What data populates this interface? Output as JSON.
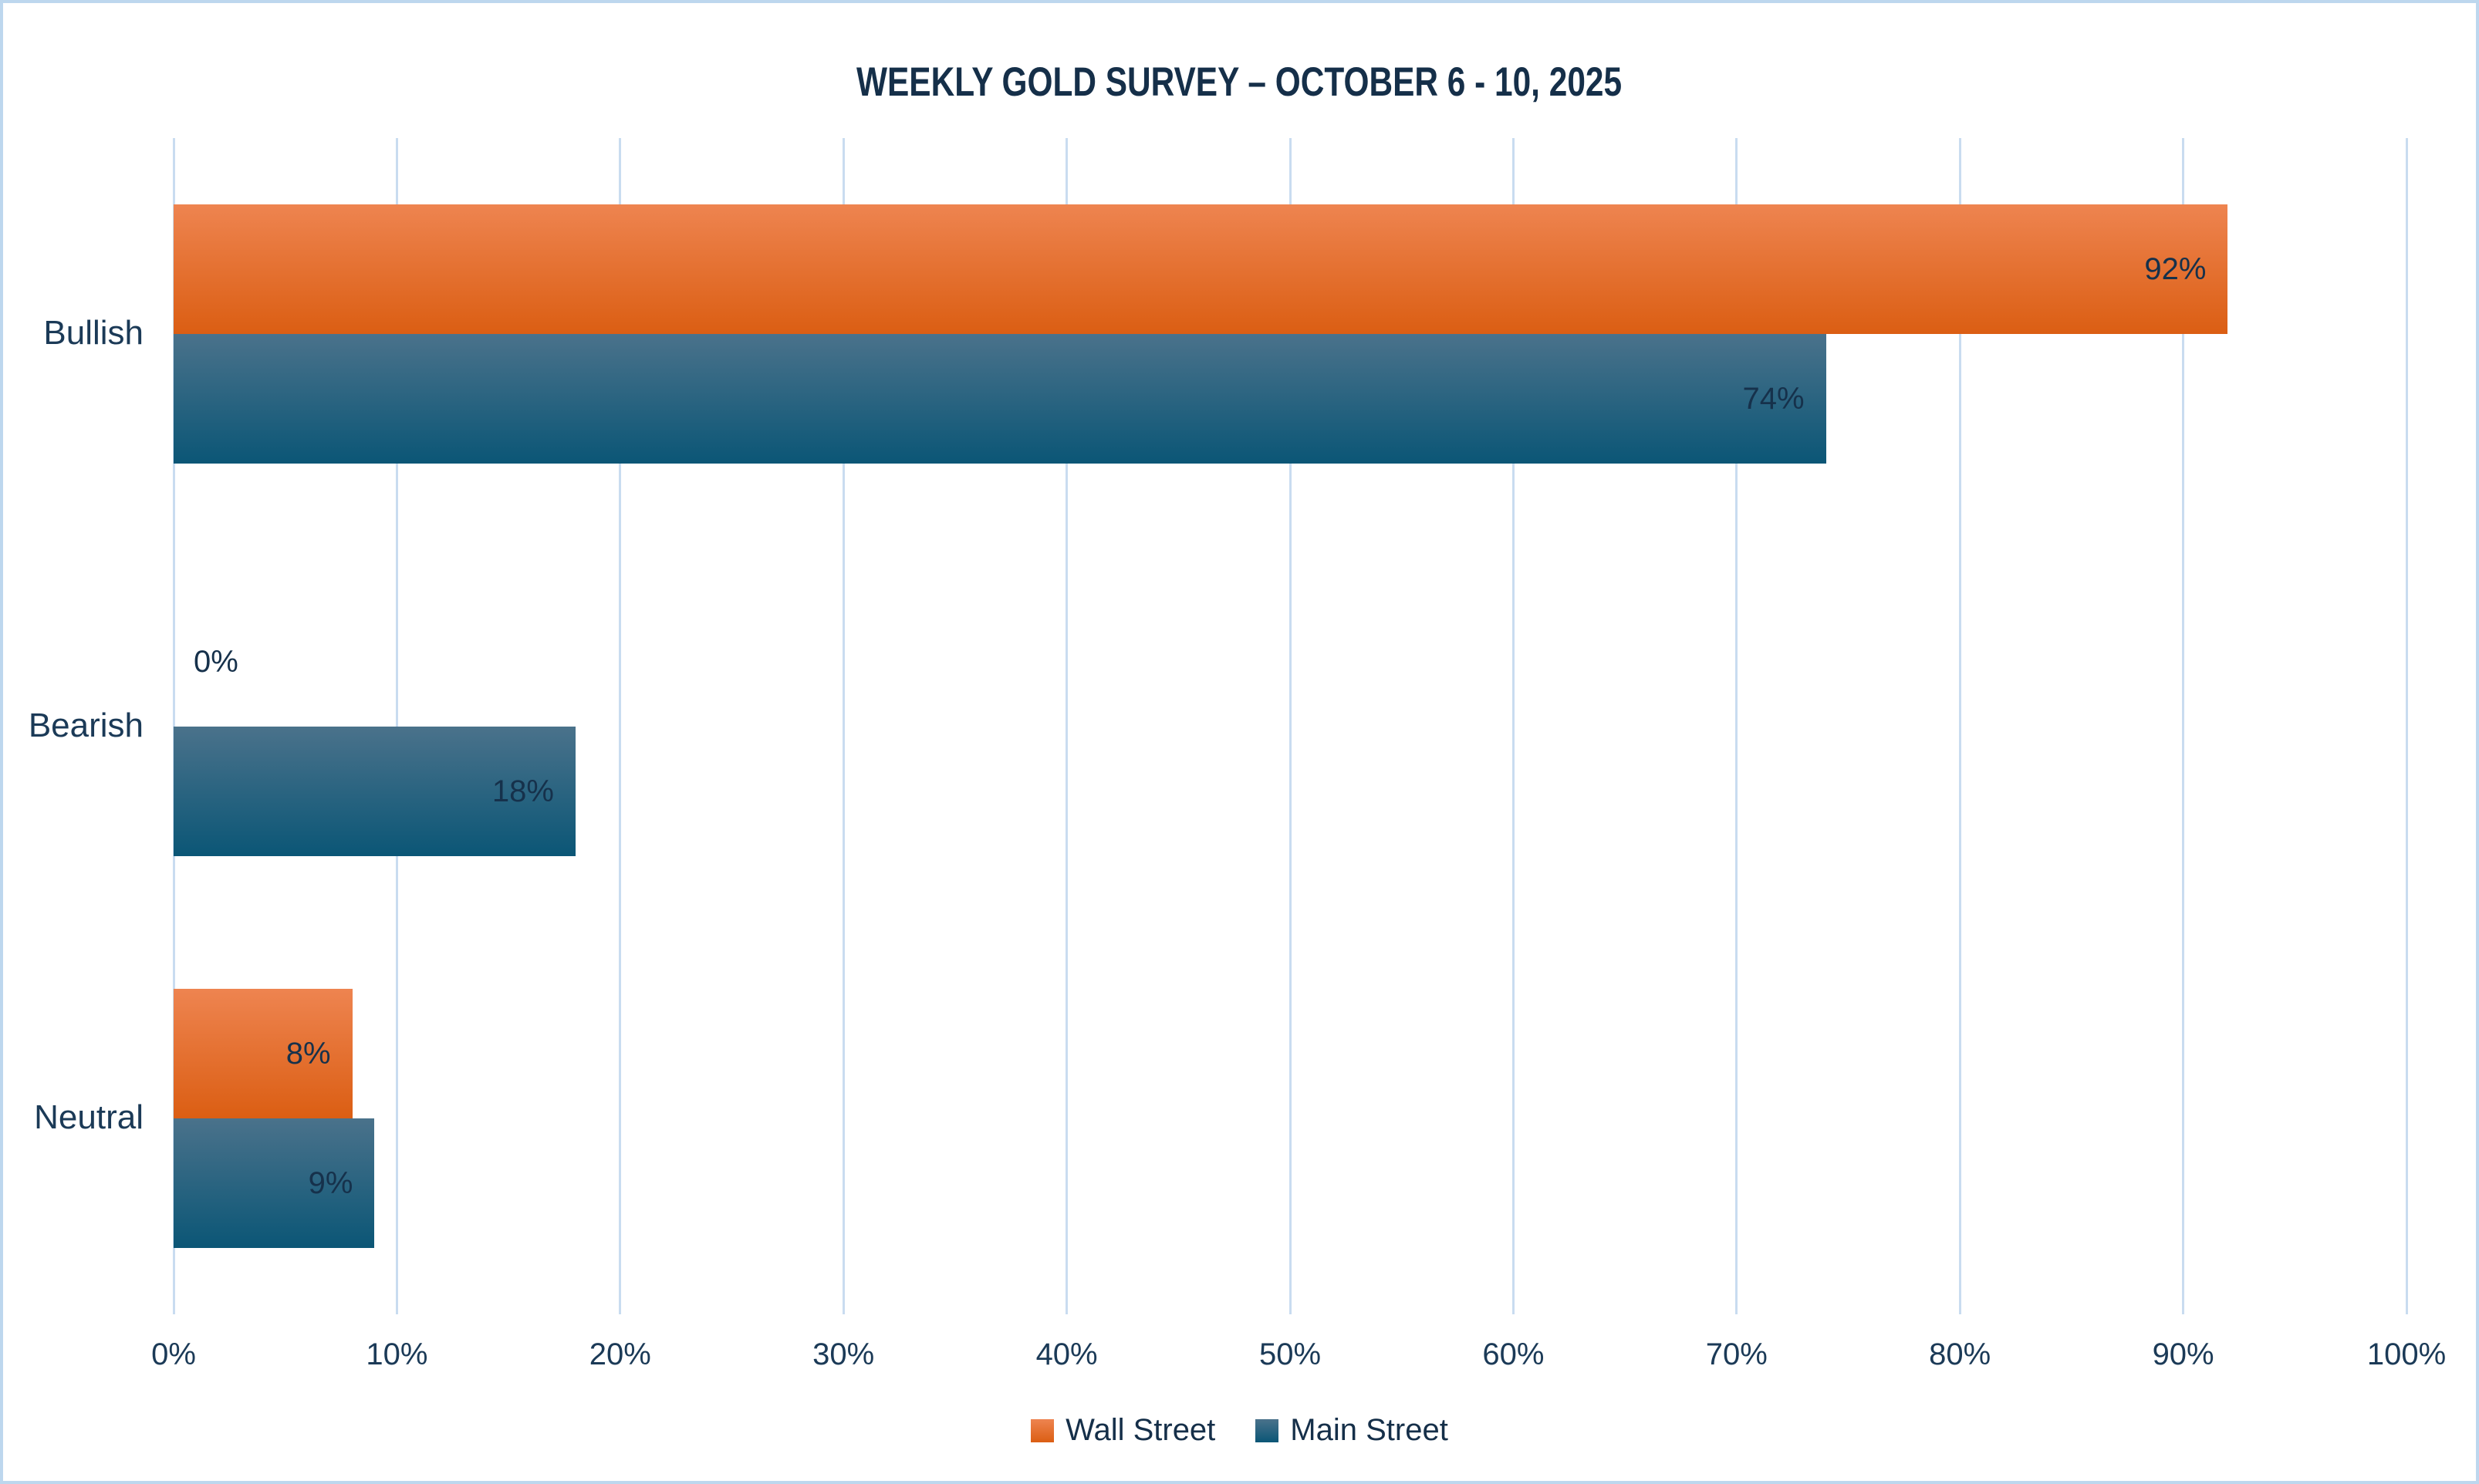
{
  "title": "WEEKLY GOLD SURVEY – OCTOBER 6 - 10, 2025",
  "chart_data": {
    "type": "bar",
    "orientation": "horizontal",
    "title": "WEEKLY GOLD SURVEY – OCTOBER 6 - 10, 2025",
    "categories": [
      "Bullish",
      "Bearish",
      "Neutral"
    ],
    "series": [
      {
        "name": "Wall Street",
        "values": [
          92,
          0,
          8
        ],
        "labels": [
          "92%",
          "0%",
          "8%"
        ],
        "gradient_top": "#ee8450",
        "gradient_bottom": "#db5e13"
      },
      {
        "name": "Main Street",
        "values": [
          74,
          18,
          9
        ],
        "labels": [
          "74%",
          "18%",
          "9%"
        ],
        "gradient_top": "#4a728b",
        "gradient_bottom": "#0b5676"
      }
    ],
    "x_ticks": [
      "0%",
      "10%",
      "20%",
      "30%",
      "40%",
      "50%",
      "60%",
      "70%",
      "80%",
      "90%",
      "100%"
    ],
    "xlim": [
      0,
      100
    ],
    "xlabel": "",
    "ylabel": "",
    "grid": "vertical",
    "legend_position": "bottom",
    "value_labels_position": "inside-end, outside-end when zero"
  },
  "colors": {
    "background": "#ffffff",
    "frame_border": "#bdd7ee",
    "gridline": "#c9dcf0",
    "axis_text": "#1b3a57",
    "title_text": "#152f49",
    "value_label_text": "#16314b"
  }
}
